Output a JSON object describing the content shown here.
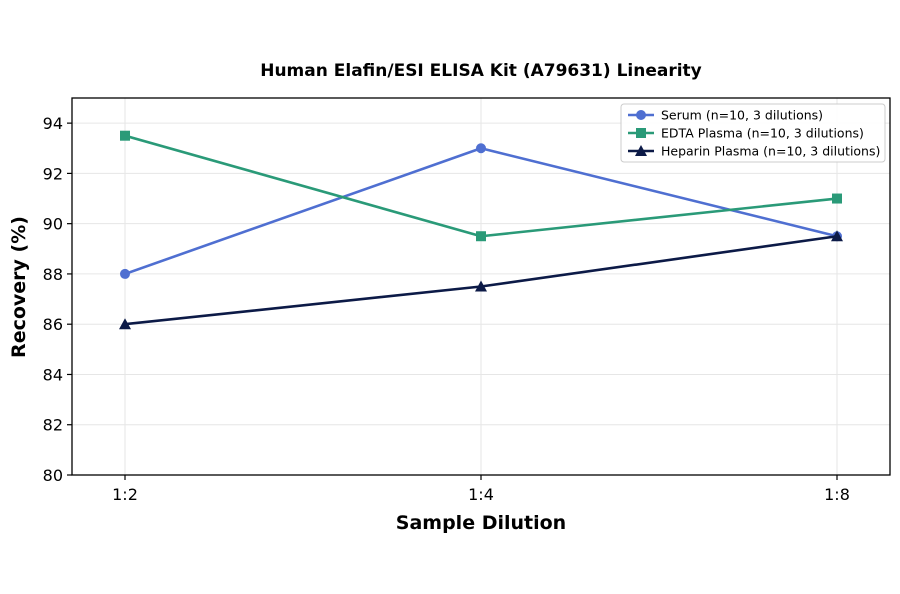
{
  "chart_data": {
    "type": "line",
    "title": "Human Elafin/ESI ELISA Kit (A79631) Linearity",
    "xlabel": "Sample Dilution",
    "ylabel": "Recovery (%)",
    "categories": [
      "1:2",
      "1:4",
      "1:8"
    ],
    "ylim": [
      80,
      95
    ],
    "yticks": [
      80,
      82,
      84,
      86,
      88,
      90,
      92,
      94
    ],
    "grid": true,
    "legend_position": "top-right",
    "series": [
      {
        "name": "Serum (n=10, 3 dilutions)",
        "values": [
          88.0,
          93.0,
          89.5
        ],
        "color": "#4f6fd1",
        "marker": "circle"
      },
      {
        "name": "EDTA Plasma (n=10, 3 dilutions)",
        "values": [
          93.5,
          89.5,
          91.0
        ],
        "color": "#2a9a78",
        "marker": "square"
      },
      {
        "name": "Heparin Plasma (n=10, 3 dilutions)",
        "values": [
          86.0,
          87.5,
          89.5
        ],
        "color": "#0c1a47",
        "marker": "triangle"
      }
    ]
  }
}
